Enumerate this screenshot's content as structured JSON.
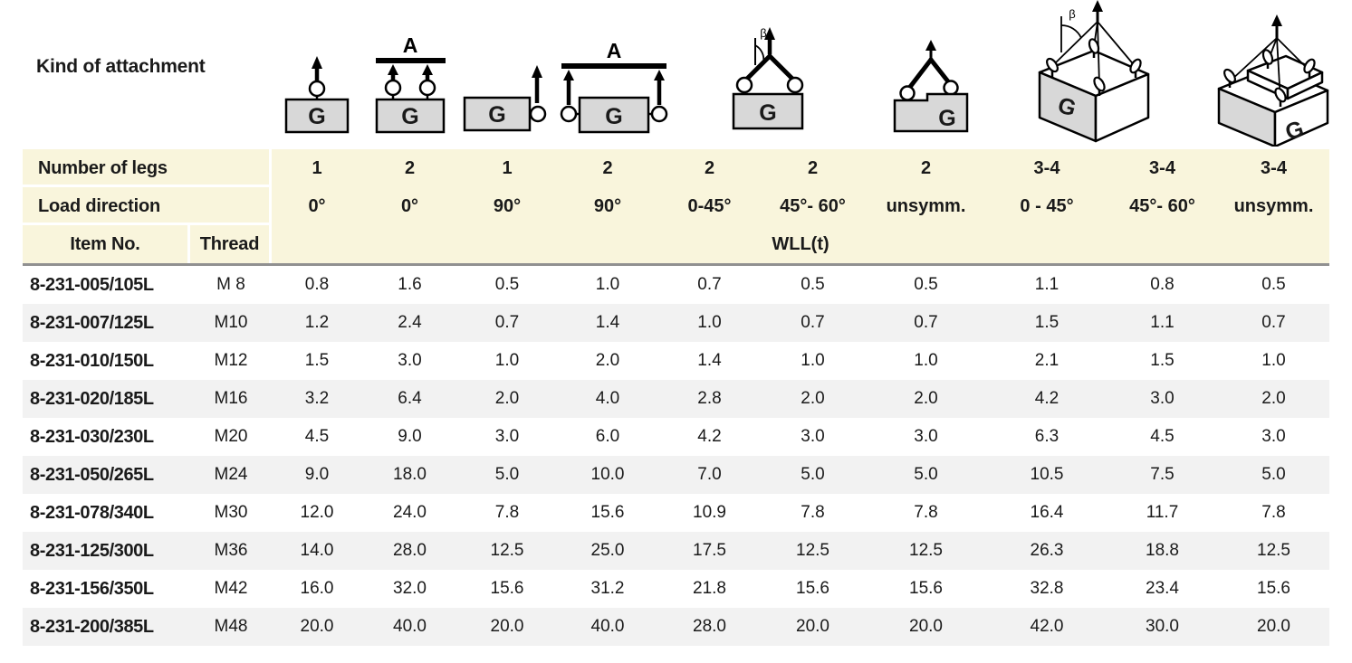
{
  "kind_of_attachment_label": "Kind of attachment",
  "colors": {
    "header_band": "#f9f5dc",
    "alt_row": "#f2f2f2",
    "header_rule": "#909090",
    "diagram_fill": "#d8d8d8",
    "text": "#1a1a1a"
  },
  "diagrams": [
    {
      "name": "single-leg-0deg",
      "box_label": "G"
    },
    {
      "name": "two-leg-0deg-beam",
      "box_label": "G",
      "beam_label": "A"
    },
    {
      "name": "single-leg-90deg",
      "box_label": "G"
    },
    {
      "name": "two-leg-90deg-beam",
      "box_label": "G",
      "beam_label": "A"
    },
    {
      "name": "two-leg-sling-angle",
      "box_label": "G",
      "angle_label": "β"
    },
    {
      "name": "two-leg-unsymmetric",
      "box_label": "G"
    },
    {
      "name": "multi-leg-sling-angle",
      "box_label": "G",
      "angle_label": "β"
    },
    {
      "name": "multi-leg-unsymmetric",
      "box_label": "G"
    }
  ],
  "header": {
    "legs_label": "Number of legs",
    "legs": [
      "1",
      "2",
      "1",
      "2",
      "2",
      "2",
      "2",
      "3-4",
      "3-4",
      "3-4"
    ],
    "direction_label": "Load direction",
    "directions": [
      "0°",
      "0°",
      "90°",
      "90°",
      "0-45°",
      "45°- 60°",
      "unsymm.",
      "0 - 45°",
      "45°- 60°",
      "unsymm."
    ],
    "item_no_label": "Item No.",
    "thread_label": "Thread",
    "wll_label": "WLL(t)"
  },
  "rows": [
    {
      "item": "8-231-005/105L",
      "thread": "M 8",
      "values": [
        "0.8",
        "1.6",
        "0.5",
        "1.0",
        "0.7",
        "0.5",
        "0.5",
        "1.1",
        "0.8",
        "0.5"
      ]
    },
    {
      "item": "8-231-007/125L",
      "thread": "M10",
      "values": [
        "1.2",
        "2.4",
        "0.7",
        "1.4",
        "1.0",
        "0.7",
        "0.7",
        "1.5",
        "1.1",
        "0.7"
      ]
    },
    {
      "item": "8-231-010/150L",
      "thread": "M12",
      "values": [
        "1.5",
        "3.0",
        "1.0",
        "2.0",
        "1.4",
        "1.0",
        "1.0",
        "2.1",
        "1.5",
        "1.0"
      ]
    },
    {
      "item": "8-231-020/185L",
      "thread": "M16",
      "values": [
        "3.2",
        "6.4",
        "2.0",
        "4.0",
        "2.8",
        "2.0",
        "2.0",
        "4.2",
        "3.0",
        "2.0"
      ]
    },
    {
      "item": "8-231-030/230L",
      "thread": "M20",
      "values": [
        "4.5",
        "9.0",
        "3.0",
        "6.0",
        "4.2",
        "3.0",
        "3.0",
        "6.3",
        "4.5",
        "3.0"
      ]
    },
    {
      "item": "8-231-050/265L",
      "thread": "M24",
      "values": [
        "9.0",
        "18.0",
        "5.0",
        "10.0",
        "7.0",
        "5.0",
        "5.0",
        "10.5",
        "7.5",
        "5.0"
      ]
    },
    {
      "item": "8-231-078/340L",
      "thread": "M30",
      "values": [
        "12.0",
        "24.0",
        "7.8",
        "15.6",
        "10.9",
        "7.8",
        "7.8",
        "16.4",
        "11.7",
        "7.8"
      ]
    },
    {
      "item": "8-231-125/300L",
      "thread": "M36",
      "values": [
        "14.0",
        "28.0",
        "12.5",
        "25.0",
        "17.5",
        "12.5",
        "12.5",
        "26.3",
        "18.8",
        "12.5"
      ]
    },
    {
      "item": "8-231-156/350L",
      "thread": "M42",
      "values": [
        "16.0",
        "32.0",
        "15.6",
        "31.2",
        "21.8",
        "15.6",
        "15.6",
        "32.8",
        "23.4",
        "15.6"
      ]
    },
    {
      "item": "8-231-200/385L",
      "thread": "M48",
      "values": [
        "20.0",
        "40.0",
        "20.0",
        "40.0",
        "28.0",
        "20.0",
        "20.0",
        "42.0",
        "30.0",
        "20.0"
      ]
    }
  ]
}
